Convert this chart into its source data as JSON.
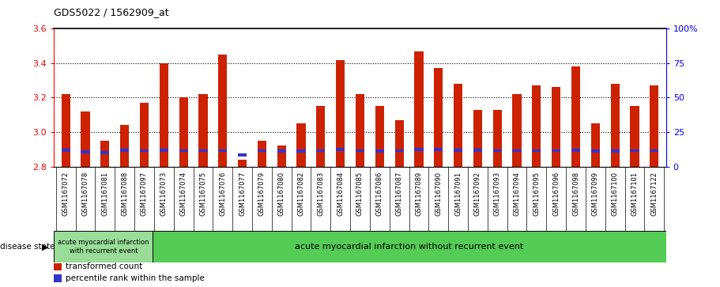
{
  "title": "GDS5022 / 1562909_at",
  "samples": [
    "GSM1167072",
    "GSM1167078",
    "GSM1167081",
    "GSM1167088",
    "GSM1167097",
    "GSM1167073",
    "GSM1167074",
    "GSM1167075",
    "GSM1167076",
    "GSM1167077",
    "GSM1167079",
    "GSM1167080",
    "GSM1167082",
    "GSM1167083",
    "GSM1167084",
    "GSM1167085",
    "GSM1167086",
    "GSM1167087",
    "GSM1167089",
    "GSM1167090",
    "GSM1167091",
    "GSM1167092",
    "GSM1167093",
    "GSM1167094",
    "GSM1167095",
    "GSM1167096",
    "GSM1167098",
    "GSM1167099",
    "GSM1167100",
    "GSM1167101",
    "GSM1167122"
  ],
  "red_values": [
    3.22,
    3.12,
    2.95,
    3.04,
    3.17,
    3.4,
    3.2,
    3.22,
    3.45,
    2.84,
    2.95,
    2.92,
    3.05,
    3.15,
    3.42,
    3.22,
    3.15,
    3.07,
    3.47,
    3.37,
    3.28,
    3.13,
    3.13,
    3.22,
    3.27,
    3.26,
    3.38,
    3.05,
    3.28,
    3.15,
    3.27
  ],
  "blue_positions": [
    2.895,
    2.885,
    2.882,
    2.895,
    2.892,
    2.895,
    2.892,
    2.892,
    2.892,
    2.865,
    2.892,
    2.888,
    2.888,
    2.892,
    2.9,
    2.892,
    2.888,
    2.892,
    2.898,
    2.9,
    2.895,
    2.895,
    2.892,
    2.892,
    2.892,
    2.892,
    2.895,
    2.888,
    2.888,
    2.892,
    2.892
  ],
  "baseline": 2.8,
  "ymin": 2.8,
  "ymax": 3.6,
  "yticks": [
    2.8,
    3.0,
    3.2,
    3.4,
    3.6
  ],
  "right_yticks": [
    0,
    25,
    50,
    75,
    100
  ],
  "right_ylabels": [
    "0",
    "25",
    "50",
    "75",
    "100%"
  ],
  "group1_count": 5,
  "group1_label": "acute myocardial infarction\nwith recurrent event",
  "group2_label": "acute myocardial infarction without recurrent event",
  "disease_state_label": "disease state",
  "legend1": "transformed count",
  "legend2": "percentile rank within the sample",
  "bar_color": "#cc2200",
  "blue_color": "#3333cc",
  "group1_bg": "#99dd99",
  "group2_bg": "#55cc55",
  "tick_bg": "#c8c8c8",
  "bar_width": 0.45
}
